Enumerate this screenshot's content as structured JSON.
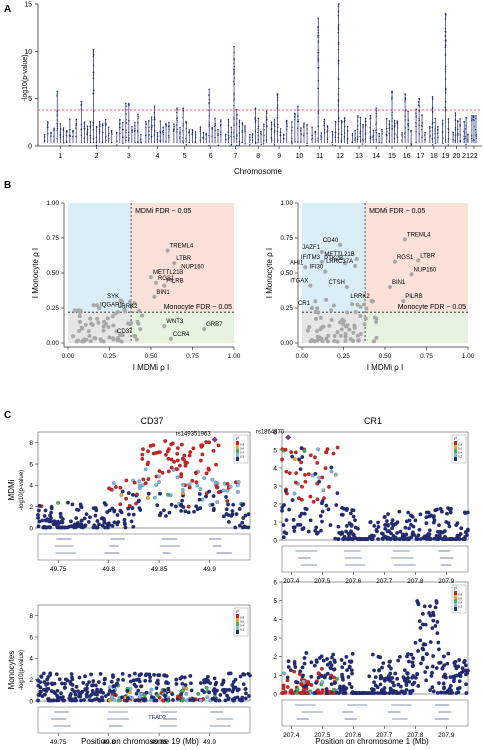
{
  "panels": {
    "A": "A",
    "B": "B",
    "C": "C"
  },
  "colors": {
    "manhattan": "#1f2a7a",
    "threshold": "#e0334a",
    "mdmi_region": "#fbe1d8",
    "mono_region": "#dbeef6",
    "both_low": "#e6e6e6",
    "green_region": "#e6f3df",
    "dot_gray": "#a8a8a8",
    "ld_low": "#1f2a7a",
    "ld_2": "#7fb8e0",
    "ld_4": "#3fb35a",
    "ld_6": "#f2a22a",
    "ld_8": "#d6201f",
    "lead": "#7d3c98"
  },
  "chart_data": [
    {
      "type": "scatter",
      "panel": "A",
      "ylabel": "-log10(p-value)",
      "xlabel": "Chromosome",
      "ylim": [
        0,
        15
      ],
      "yticks": [
        0,
        5,
        10,
        15
      ],
      "threshold": 3.8,
      "categories": [
        "1",
        "2",
        "3",
        "4",
        "5",
        "6",
        "7",
        "8",
        "9",
        "10",
        "11",
        "12",
        "13",
        "14",
        "15",
        "16",
        "17",
        "18",
        "19",
        "20",
        "21",
        "22"
      ],
      "peaks": [
        5.8,
        10.2,
        4.5,
        4.2,
        4.0,
        6.0,
        10.5,
        4.0,
        5.5,
        4.2,
        13.5,
        15.0,
        3.2,
        4.0,
        5.8,
        5.5,
        5.0,
        5.2,
        14.0,
        3.5,
        3.0,
        3.2
      ]
    },
    {
      "type": "scatter",
      "panel": "B-left",
      "xlabel": "I MDMi ρ I",
      "ylabel": "I Monocyte ρ I",
      "xlim": [
        0,
        1
      ],
      "ylim": [
        0,
        1
      ],
      "xticks": [
        "0.00",
        "0.25",
        "0.50",
        "0.75",
        "1.00"
      ],
      "yticks": [
        "0.00",
        "0.25",
        "0.50",
        "0.75",
        "1.00"
      ],
      "mdmi_fdr_x": 0.38,
      "mono_fdr_y": 0.22,
      "mdmi_fdr_label": "MDMi FDR ~ 0.05",
      "mono_fdr_label": "Monocyte FDR ~ 0.05",
      "labeled_points": [
        {
          "label": "TREML4",
          "x": 0.6,
          "y": 0.66
        },
        {
          "label": "LTBR",
          "x": 0.64,
          "y": 0.57
        },
        {
          "label": "METTL21B",
          "x": 0.5,
          "y": 0.47
        },
        {
          "label": "NUP160",
          "x": 0.67,
          "y": 0.51
        },
        {
          "label": "RGS1",
          "x": 0.53,
          "y": 0.43
        },
        {
          "label": "PILRB",
          "x": 0.58,
          "y": 0.41
        },
        {
          "label": "BIN1",
          "x": 0.52,
          "y": 0.33
        },
        {
          "label": "SYK",
          "x": 0.32,
          "y": 0.3
        },
        {
          "label": "IQGAP1",
          "x": 0.34,
          "y": 0.24
        },
        {
          "label": "LRRK2",
          "x": 0.43,
          "y": 0.23
        },
        {
          "label": "WNT3",
          "x": 0.58,
          "y": 0.12
        },
        {
          "label": "GRB7",
          "x": 0.82,
          "y": 0.1
        },
        {
          "label": "CD37",
          "x": 0.4,
          "y": 0.05
        },
        {
          "label": "CCR4",
          "x": 0.62,
          "y": 0.03
        }
      ]
    },
    {
      "type": "scatter",
      "panel": "B-right",
      "xlabel": "I MDMi ρ I",
      "ylabel": "I Monocyte ρ I",
      "xlim": [
        0,
        1
      ],
      "ylim": [
        0,
        1
      ],
      "xticks": [
        "0.00",
        "0.25",
        "0.50",
        "0.75",
        "1.00"
      ],
      "yticks": [
        "0.00",
        "0.25",
        "0.50",
        "0.75",
        "1.00"
      ],
      "mdmi_fdr_x": 0.38,
      "mono_fdr_y": 0.22,
      "mdmi_fdr_label": "MDMi FDR ~ 0.05",
      "mono_fdr_label": "Monocyte FDR ~ 0.05",
      "labeled_points": [
        {
          "label": "CD40",
          "x": 0.23,
          "y": 0.7
        },
        {
          "label": "JAZF1",
          "x": 0.12,
          "y": 0.65
        },
        {
          "label": "TREML4",
          "x": 0.62,
          "y": 0.74
        },
        {
          "label": "IFITM3",
          "x": 0.12,
          "y": 0.58
        },
        {
          "label": "METTL21B",
          "x": 0.33,
          "y": 0.6
        },
        {
          "label": "PTK2B",
          "x": 0.26,
          "y": 0.57
        },
        {
          "label": "RGS1",
          "x": 0.56,
          "y": 0.58
        },
        {
          "label": "LTBR",
          "x": 0.7,
          "y": 0.59
        },
        {
          "label": "AHI1",
          "x": 0.02,
          "y": 0.54
        },
        {
          "label": "IFI30",
          "x": 0.14,
          "y": 0.51
        },
        {
          "label": "LRRC37A",
          "x": 0.32,
          "y": 0.55
        },
        {
          "label": "NUP160",
          "x": 0.66,
          "y": 0.49
        },
        {
          "label": "ITGAX",
          "x": 0.05,
          "y": 0.41
        },
        {
          "label": "CTSH",
          "x": 0.27,
          "y": 0.4
        },
        {
          "label": "BIN1",
          "x": 0.53,
          "y": 0.4
        },
        {
          "label": "LRRK2",
          "x": 0.42,
          "y": 0.3
        },
        {
          "label": "PILRB",
          "x": 0.61,
          "y": 0.3
        },
        {
          "label": "CR1",
          "x": 0.06,
          "y": 0.25
        }
      ]
    },
    {
      "type": "scatter",
      "panel": "C-CD37-MDMi",
      "title": "CD37",
      "ylabel": "MDMi -log10(p-value)",
      "xlim": [
        49.73,
        49.94
      ],
      "ylim": [
        0,
        9
      ],
      "yticks": [
        0,
        2,
        4,
        6,
        8
      ],
      "lead_snp": "rs149351963",
      "lead_x": 49.905,
      "lead_y": 8.3
    },
    {
      "type": "scatter",
      "panel": "C-CR1-MDMi",
      "title": "CR1",
      "ylabel": "MDMi -log10(p-value)",
      "xlim": [
        207.37,
        207.97
      ],
      "ylim": [
        0,
        6
      ],
      "yticks": [
        0,
        1,
        2,
        3,
        4,
        5,
        6
      ],
      "lead_snp": "rs1864370",
      "lead_x": 207.39,
      "lead_y": 5.7
    },
    {
      "type": "scatter",
      "panel": "C-CD37-Monocytes",
      "ylabel": "Monocytes -log10(p-value)",
      "xlim": [
        49.73,
        49.94
      ],
      "ylim": [
        0,
        9
      ],
      "yticks": [
        0,
        2,
        4,
        6,
        8
      ]
    },
    {
      "type": "scatter",
      "panel": "C-CR1-Monocytes",
      "ylabel": "Monocytes -log10(p-value)",
      "xlim": [
        207.37,
        207.97
      ],
      "ylim": [
        0,
        6
      ],
      "yticks": [
        0,
        1,
        2,
        3,
        4,
        5,
        6
      ]
    }
  ],
  "panelC": {
    "title_cd37": "CD37",
    "title_cr1": "CR1",
    "ylabel_mdmi": "MDMi",
    "ylabel_mono": "Monocytes",
    "ylabel_sub": "-log10(p-value)",
    "xticks_cd37": [
      "49.75",
      "49.8",
      "49.85",
      "49.9"
    ],
    "xticks_cr1": [
      "207.4",
      "207.5",
      "207.6",
      "207.7",
      "207.8",
      "207.9"
    ],
    "xlabel_cd37": "Position on chromosome 19 (Mb)",
    "xlabel_cr1": "Position on chromosome 1 (Mb)",
    "lead_cd37": "rs149351963",
    "lead_cr1": "rs1864370",
    "ld_title": "r²",
    "ld_ticks": [
      "0.8",
      "0.6",
      "0.4",
      "0.2"
    ],
    "gene_cd37_mono_label": "TEAD2"
  }
}
